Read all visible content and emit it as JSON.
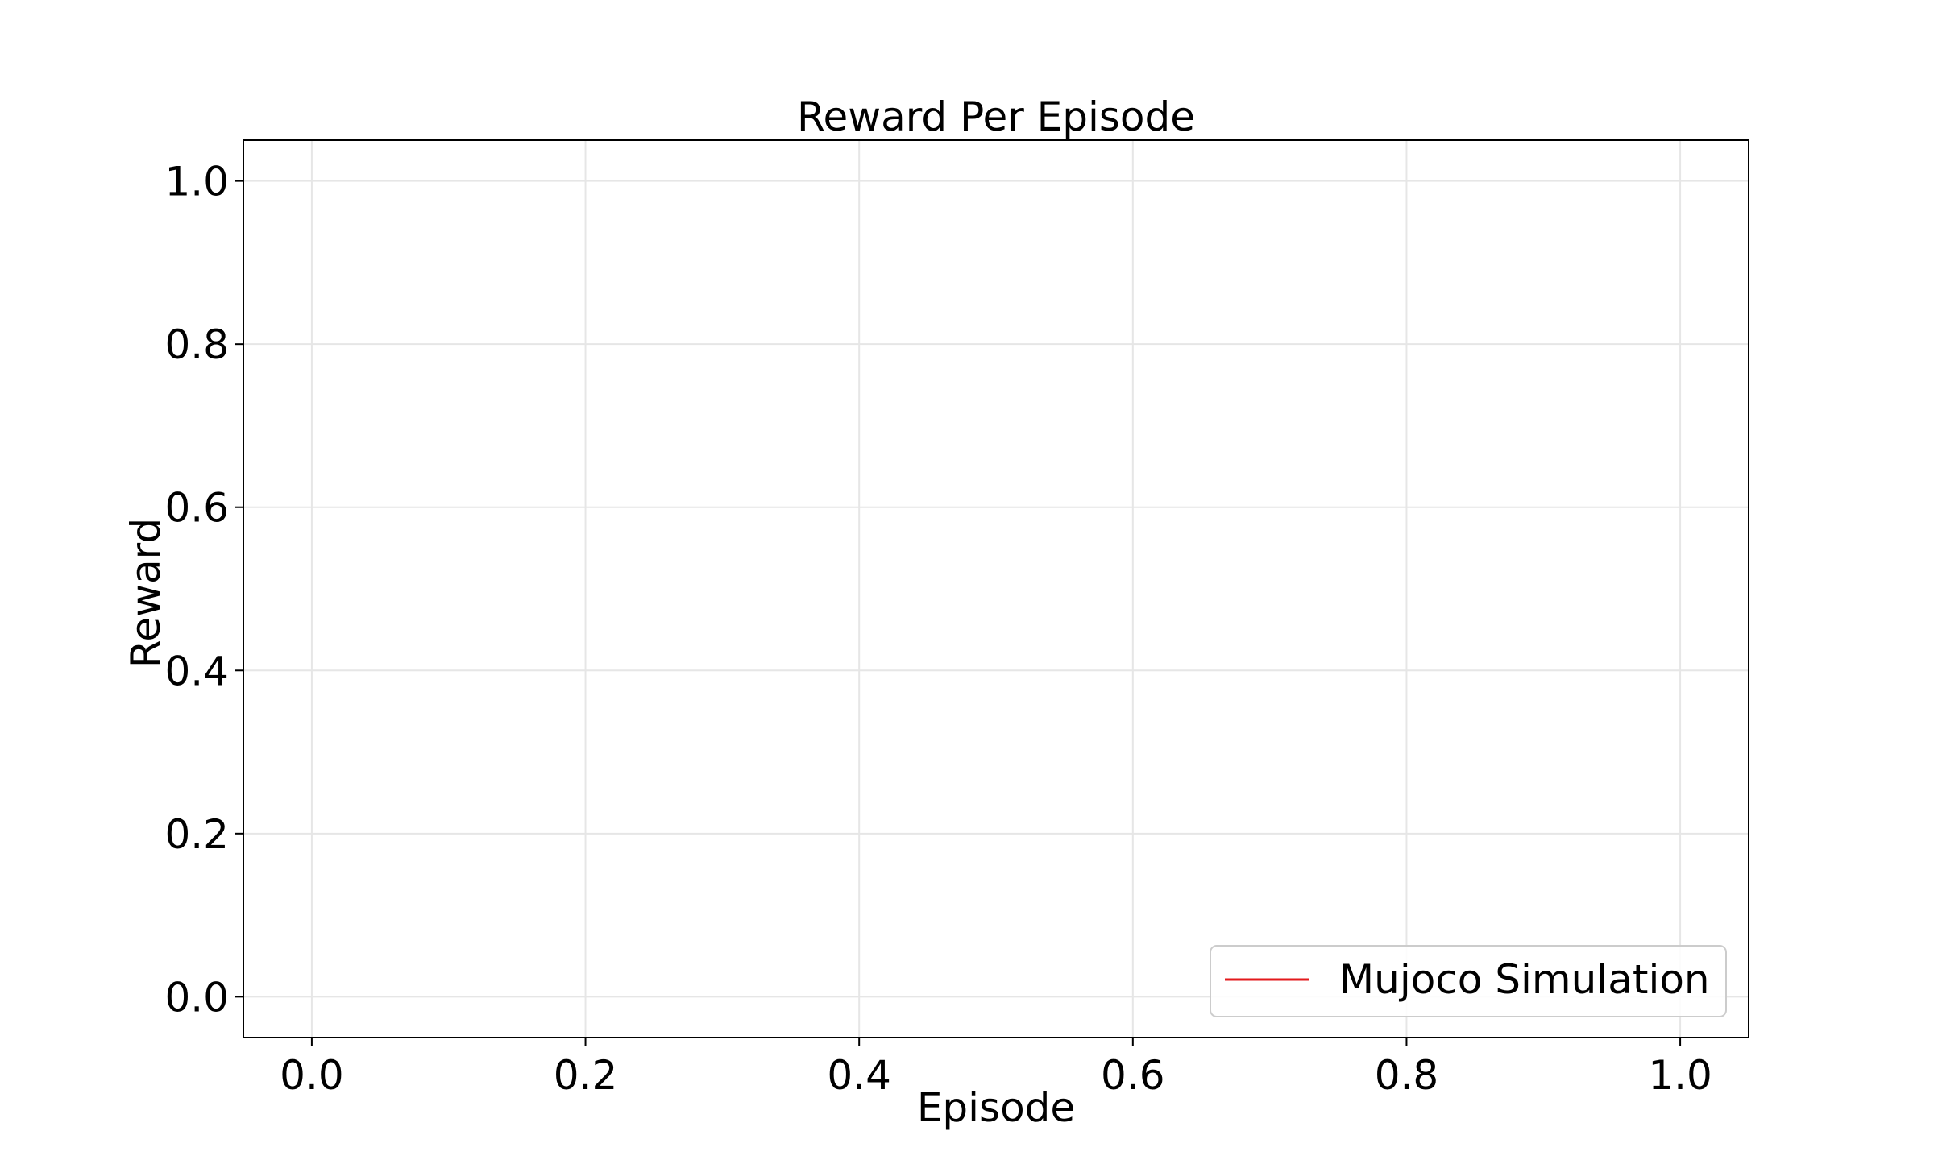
{
  "chart_data": {
    "type": "line",
    "title": "Reward Per Episode",
    "xlabel": "Episode",
    "ylabel": "Reward",
    "xlim": [
      -0.05,
      1.05
    ],
    "ylim": [
      -0.05,
      1.05
    ],
    "xticks": [
      0.0,
      0.2,
      0.4,
      0.6,
      0.8,
      1.0
    ],
    "xtick_labels": [
      "0.0",
      "0.2",
      "0.4",
      "0.6",
      "0.8",
      "1.0"
    ],
    "yticks": [
      0.0,
      0.2,
      0.4,
      0.6,
      0.8,
      1.0
    ],
    "ytick_labels": [
      "0.0",
      "0.2",
      "0.4",
      "0.6",
      "0.8",
      "1.0"
    ],
    "grid": true,
    "legend_position": "lower-right",
    "series": [
      {
        "name": "Mujoco Simulation",
        "color": "#e31a1c",
        "x": [],
        "values": []
      }
    ]
  }
}
